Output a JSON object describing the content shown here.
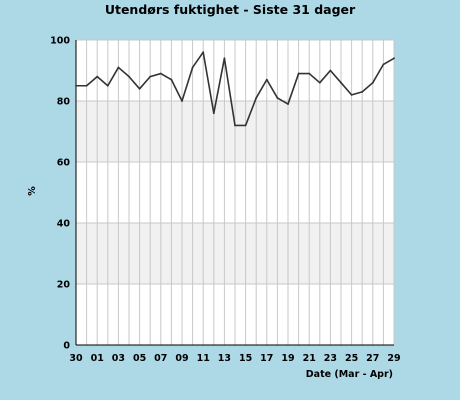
{
  "colors": {
    "background": "#add8e6",
    "plot_background": "#ffffff",
    "band_fill": "#f1f1f1",
    "grid_line": "#c8c8c8",
    "series_line": "#333333"
  },
  "chart_data": {
    "type": "line",
    "title": "Utendørs fuktighet - Siste 31 dager",
    "xlabel": "Date (Mar - Apr)",
    "ylabel": "%",
    "ylim": [
      0,
      100
    ],
    "yticks": [
      "0",
      "20",
      "40",
      "60",
      "80",
      "100"
    ],
    "xticks": [
      "30",
      "01",
      "03",
      "05",
      "07",
      "09",
      "11",
      "13",
      "15",
      "17",
      "19",
      "21",
      "23",
      "25",
      "27",
      "29"
    ],
    "x": [
      "30",
      "31",
      "01",
      "02",
      "03",
      "04",
      "05",
      "06",
      "07",
      "08",
      "09",
      "10",
      "11",
      "12",
      "13",
      "14",
      "15",
      "16",
      "17",
      "18",
      "19",
      "20",
      "21",
      "22",
      "23",
      "24",
      "25",
      "26",
      "27",
      "28",
      "29"
    ],
    "grid": true,
    "bands": [
      [
        20,
        40
      ],
      [
        60,
        80
      ]
    ],
    "series": [
      {
        "values": [
          85,
          85,
          88,
          85,
          91,
          88,
          84,
          88,
          89,
          87,
          80,
          91,
          96,
          76,
          94,
          72,
          72,
          81,
          87,
          81,
          79,
          89,
          89,
          86,
          90,
          86,
          82,
          83,
          86,
          92,
          94
        ]
      }
    ]
  }
}
